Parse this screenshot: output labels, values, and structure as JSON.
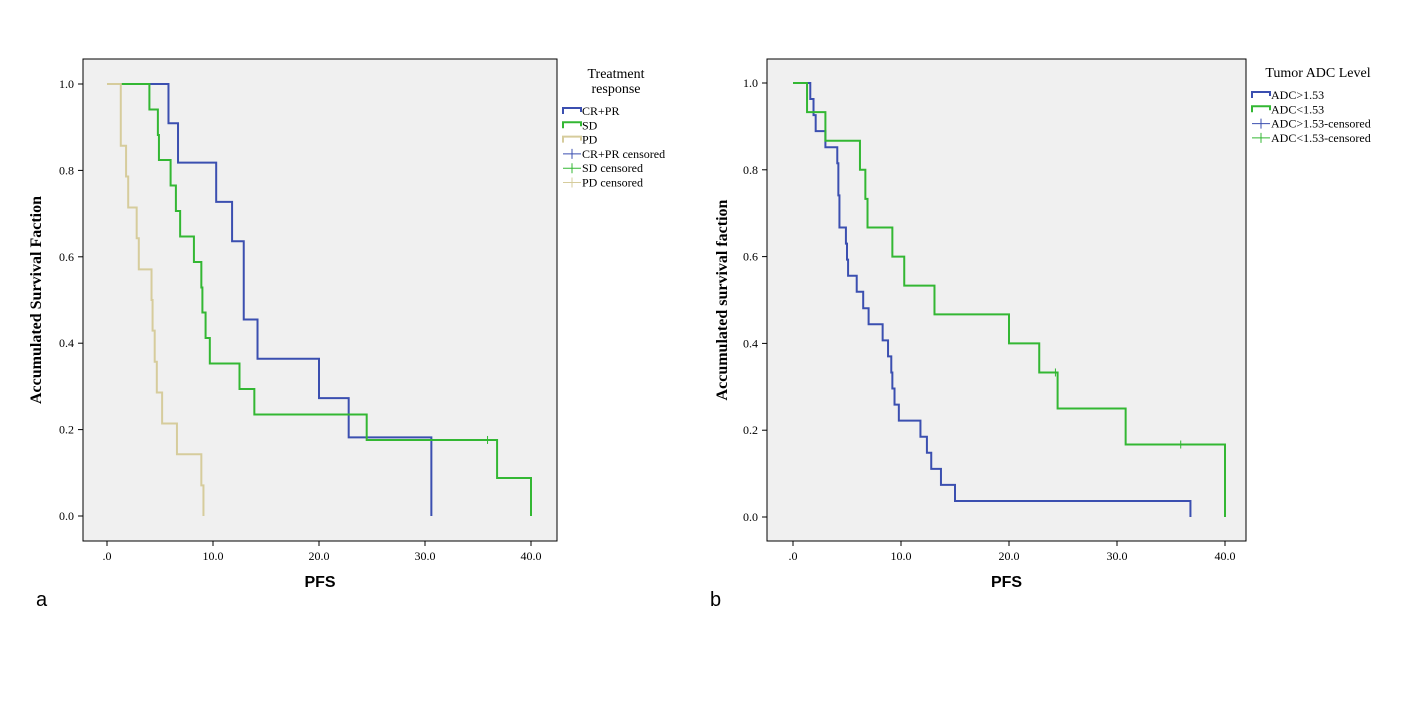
{
  "colors": {
    "blue": "#3b4fb0",
    "green": "#33b733",
    "tan": "#d6cc9c",
    "plot_bg": "#f0f0f0"
  },
  "chart_data": [
    {
      "type": "line",
      "subtype": "kaplan-meier",
      "panel_label": "a",
      "xlabel": "PFS",
      "ylabel": "Accumulated Survival Faction",
      "xlim": [
        -2,
        42
      ],
      "ylim": [
        -0.05,
        1.05
      ],
      "x_ticks": [
        0,
        10,
        20,
        30,
        40
      ],
      "x_tick_labels": [
        ".0",
        "10.0",
        "20.0",
        "30.0",
        "40.0"
      ],
      "y_ticks": [
        0,
        0.2,
        0.4,
        0.6,
        0.8,
        1.0
      ],
      "y_tick_labels": [
        "0.0",
        "0.2",
        "0.4",
        "0.6",
        "0.8",
        "1.0"
      ],
      "legend": {
        "title_lines": [
          "Treatment",
          "response"
        ],
        "items": [
          {
            "label": "CR+PR",
            "kind": "step",
            "color": "blue"
          },
          {
            "label": "SD",
            "kind": "step",
            "color": "green"
          },
          {
            "label": "PD",
            "kind": "step",
            "color": "tan"
          },
          {
            "label": "CR+PR censored",
            "kind": "censor",
            "color": "blue"
          },
          {
            "label": "SD censored",
            "kind": "censor",
            "color": "green"
          },
          {
            "label": "PD censored",
            "kind": "censor",
            "color": "tan"
          }
        ]
      },
      "series": [
        {
          "name": "CR+PR",
          "color": "blue",
          "steps": [
            [
              0,
              1.0
            ],
            [
              5.8,
              0.909
            ],
            [
              6.7,
              0.818
            ],
            [
              10.3,
              0.727
            ],
            [
              11.8,
              0.636
            ],
            [
              12.9,
              0.455
            ],
            [
              14.2,
              0.364
            ],
            [
              20.0,
              0.273
            ],
            [
              22.8,
              0.182
            ],
            [
              30.6,
              0.0
            ]
          ],
          "censored": []
        },
        {
          "name": "SD",
          "color": "green",
          "steps": [
            [
              0,
              1.0
            ],
            [
              4.0,
              0.941
            ],
            [
              4.8,
              0.882
            ],
            [
              4.9,
              0.824
            ],
            [
              6.0,
              0.765
            ],
            [
              6.5,
              0.706
            ],
            [
              6.9,
              0.647
            ],
            [
              8.2,
              0.588
            ],
            [
              8.9,
              0.529
            ],
            [
              9.0,
              0.471
            ],
            [
              9.3,
              0.412
            ],
            [
              9.7,
              0.353
            ],
            [
              12.5,
              0.294
            ],
            [
              13.9,
              0.235
            ],
            [
              24.5,
              0.176
            ],
            [
              36.8,
              0.088
            ],
            [
              40.0,
              0.0
            ]
          ],
          "censored": [
            [
              35.9,
              0.176
            ]
          ]
        },
        {
          "name": "PD",
          "color": "tan",
          "steps": [
            [
              0,
              1.0
            ],
            [
              1.3,
              0.857
            ],
            [
              1.8,
              0.786
            ],
            [
              2.0,
              0.714
            ],
            [
              2.8,
              0.643
            ],
            [
              3.0,
              0.571
            ],
            [
              4.2,
              0.5
            ],
            [
              4.3,
              0.429
            ],
            [
              4.5,
              0.357
            ],
            [
              4.7,
              0.286
            ],
            [
              5.2,
              0.214
            ],
            [
              6.6,
              0.143
            ],
            [
              8.9,
              0.071
            ],
            [
              9.1,
              0.0
            ]
          ],
          "censored": []
        }
      ]
    },
    {
      "type": "line",
      "subtype": "kaplan-meier",
      "panel_label": "b",
      "xlabel": "PFS",
      "ylabel": "Accumulated survival faction",
      "xlim": [
        -2,
        42
      ],
      "ylim": [
        -0.05,
        1.05
      ],
      "x_ticks": [
        0,
        10,
        20,
        30,
        40
      ],
      "x_tick_labels": [
        ".0",
        "10.0",
        "20.0",
        "30.0",
        "40.0"
      ],
      "y_ticks": [
        0,
        0.2,
        0.4,
        0.6,
        0.8,
        1.0
      ],
      "y_tick_labels": [
        "0.0",
        "0.2",
        "0.4",
        "0.6",
        "0.8",
        "1.0"
      ],
      "legend": {
        "title_lines": [
          "Tumor ADC Level"
        ],
        "items": [
          {
            "label": "ADC>1.53",
            "kind": "step",
            "color": "blue"
          },
          {
            "label": "ADC<1.53",
            "kind": "step",
            "color": "green"
          },
          {
            "label": "ADC>1.53-censored",
            "kind": "censor",
            "color": "blue"
          },
          {
            "label": "ADC<1.53-censored",
            "kind": "censor",
            "color": "green"
          }
        ]
      },
      "series": [
        {
          "name": "ADC>1.53",
          "color": "blue",
          "steps": [
            [
              0,
              1.0
            ],
            [
              1.6,
              0.963
            ],
            [
              1.9,
              0.926
            ],
            [
              2.1,
              0.889
            ],
            [
              3.0,
              0.852
            ],
            [
              4.1,
              0.815
            ],
            [
              4.2,
              0.741
            ],
            [
              4.3,
              0.667
            ],
            [
              4.9,
              0.63
            ],
            [
              5.0,
              0.593
            ],
            [
              5.1,
              0.556
            ],
            [
              5.9,
              0.519
            ],
            [
              6.5,
              0.481
            ],
            [
              7.0,
              0.444
            ],
            [
              8.3,
              0.407
            ],
            [
              8.8,
              0.37
            ],
            [
              9.1,
              0.333
            ],
            [
              9.2,
              0.296
            ],
            [
              9.4,
              0.259
            ],
            [
              9.8,
              0.222
            ],
            [
              11.8,
              0.185
            ],
            [
              12.4,
              0.148
            ],
            [
              12.8,
              0.111
            ],
            [
              13.7,
              0.074
            ],
            [
              15.0,
              0.037
            ],
            [
              36.8,
              0.0
            ]
          ],
          "censored": []
        },
        {
          "name": "ADC<1.53",
          "color": "green",
          "steps": [
            [
              0,
              1.0
            ],
            [
              1.3,
              0.933
            ],
            [
              3.0,
              0.867
            ],
            [
              6.2,
              0.8
            ],
            [
              6.7,
              0.733
            ],
            [
              6.9,
              0.667
            ],
            [
              9.2,
              0.6
            ],
            [
              10.3,
              0.533
            ],
            [
              13.1,
              0.467
            ],
            [
              20.0,
              0.4
            ],
            [
              22.8,
              0.333
            ],
            [
              24.5,
              0.25
            ],
            [
              30.8,
              0.167
            ],
            [
              40.0,
              0.0
            ]
          ],
          "censored": [
            [
              24.3,
              0.333
            ],
            [
              35.9,
              0.167
            ]
          ]
        }
      ]
    }
  ]
}
